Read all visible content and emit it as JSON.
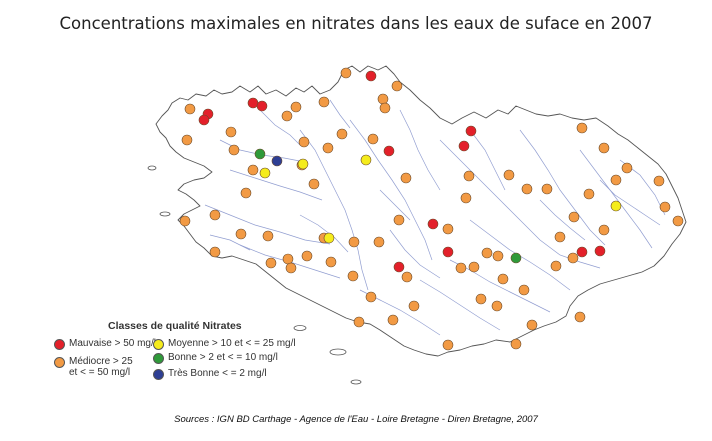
{
  "title": "Concentrations maximales en nitrates dans les eaux de suface en 2007",
  "source": "Sources : IGN BD Carthage - Agence de l'Eau - Loire Bretagne - Diren Bretagne, 2007",
  "legend": {
    "title": "Classes de qualité Nitrates",
    "items": [
      {
        "key": "mauvaise",
        "label": "Mauvaise > 50 mg/l",
        "color": "#e3202a"
      },
      {
        "key": "mediocre",
        "label": "Médiocre > 25\net < = 50 mg/l",
        "color": "#f29a44"
      },
      {
        "key": "moyenne",
        "label": "Moyenne > 10 et < = 25 mg/l",
        "color": "#f5ec1c"
      },
      {
        "key": "bonne",
        "label": "Bonne > 2 et < = 10 mg/l",
        "color": "#2f9a3a"
      },
      {
        "key": "tres_bonne",
        "label": "Très Bonne < = 2 mg/l",
        "color": "#2e3f94"
      }
    ]
  },
  "colors": {
    "coastline": "#555555",
    "rivers": "#7f8ec9",
    "dot_outline": "#6b4a2a"
  }
}
